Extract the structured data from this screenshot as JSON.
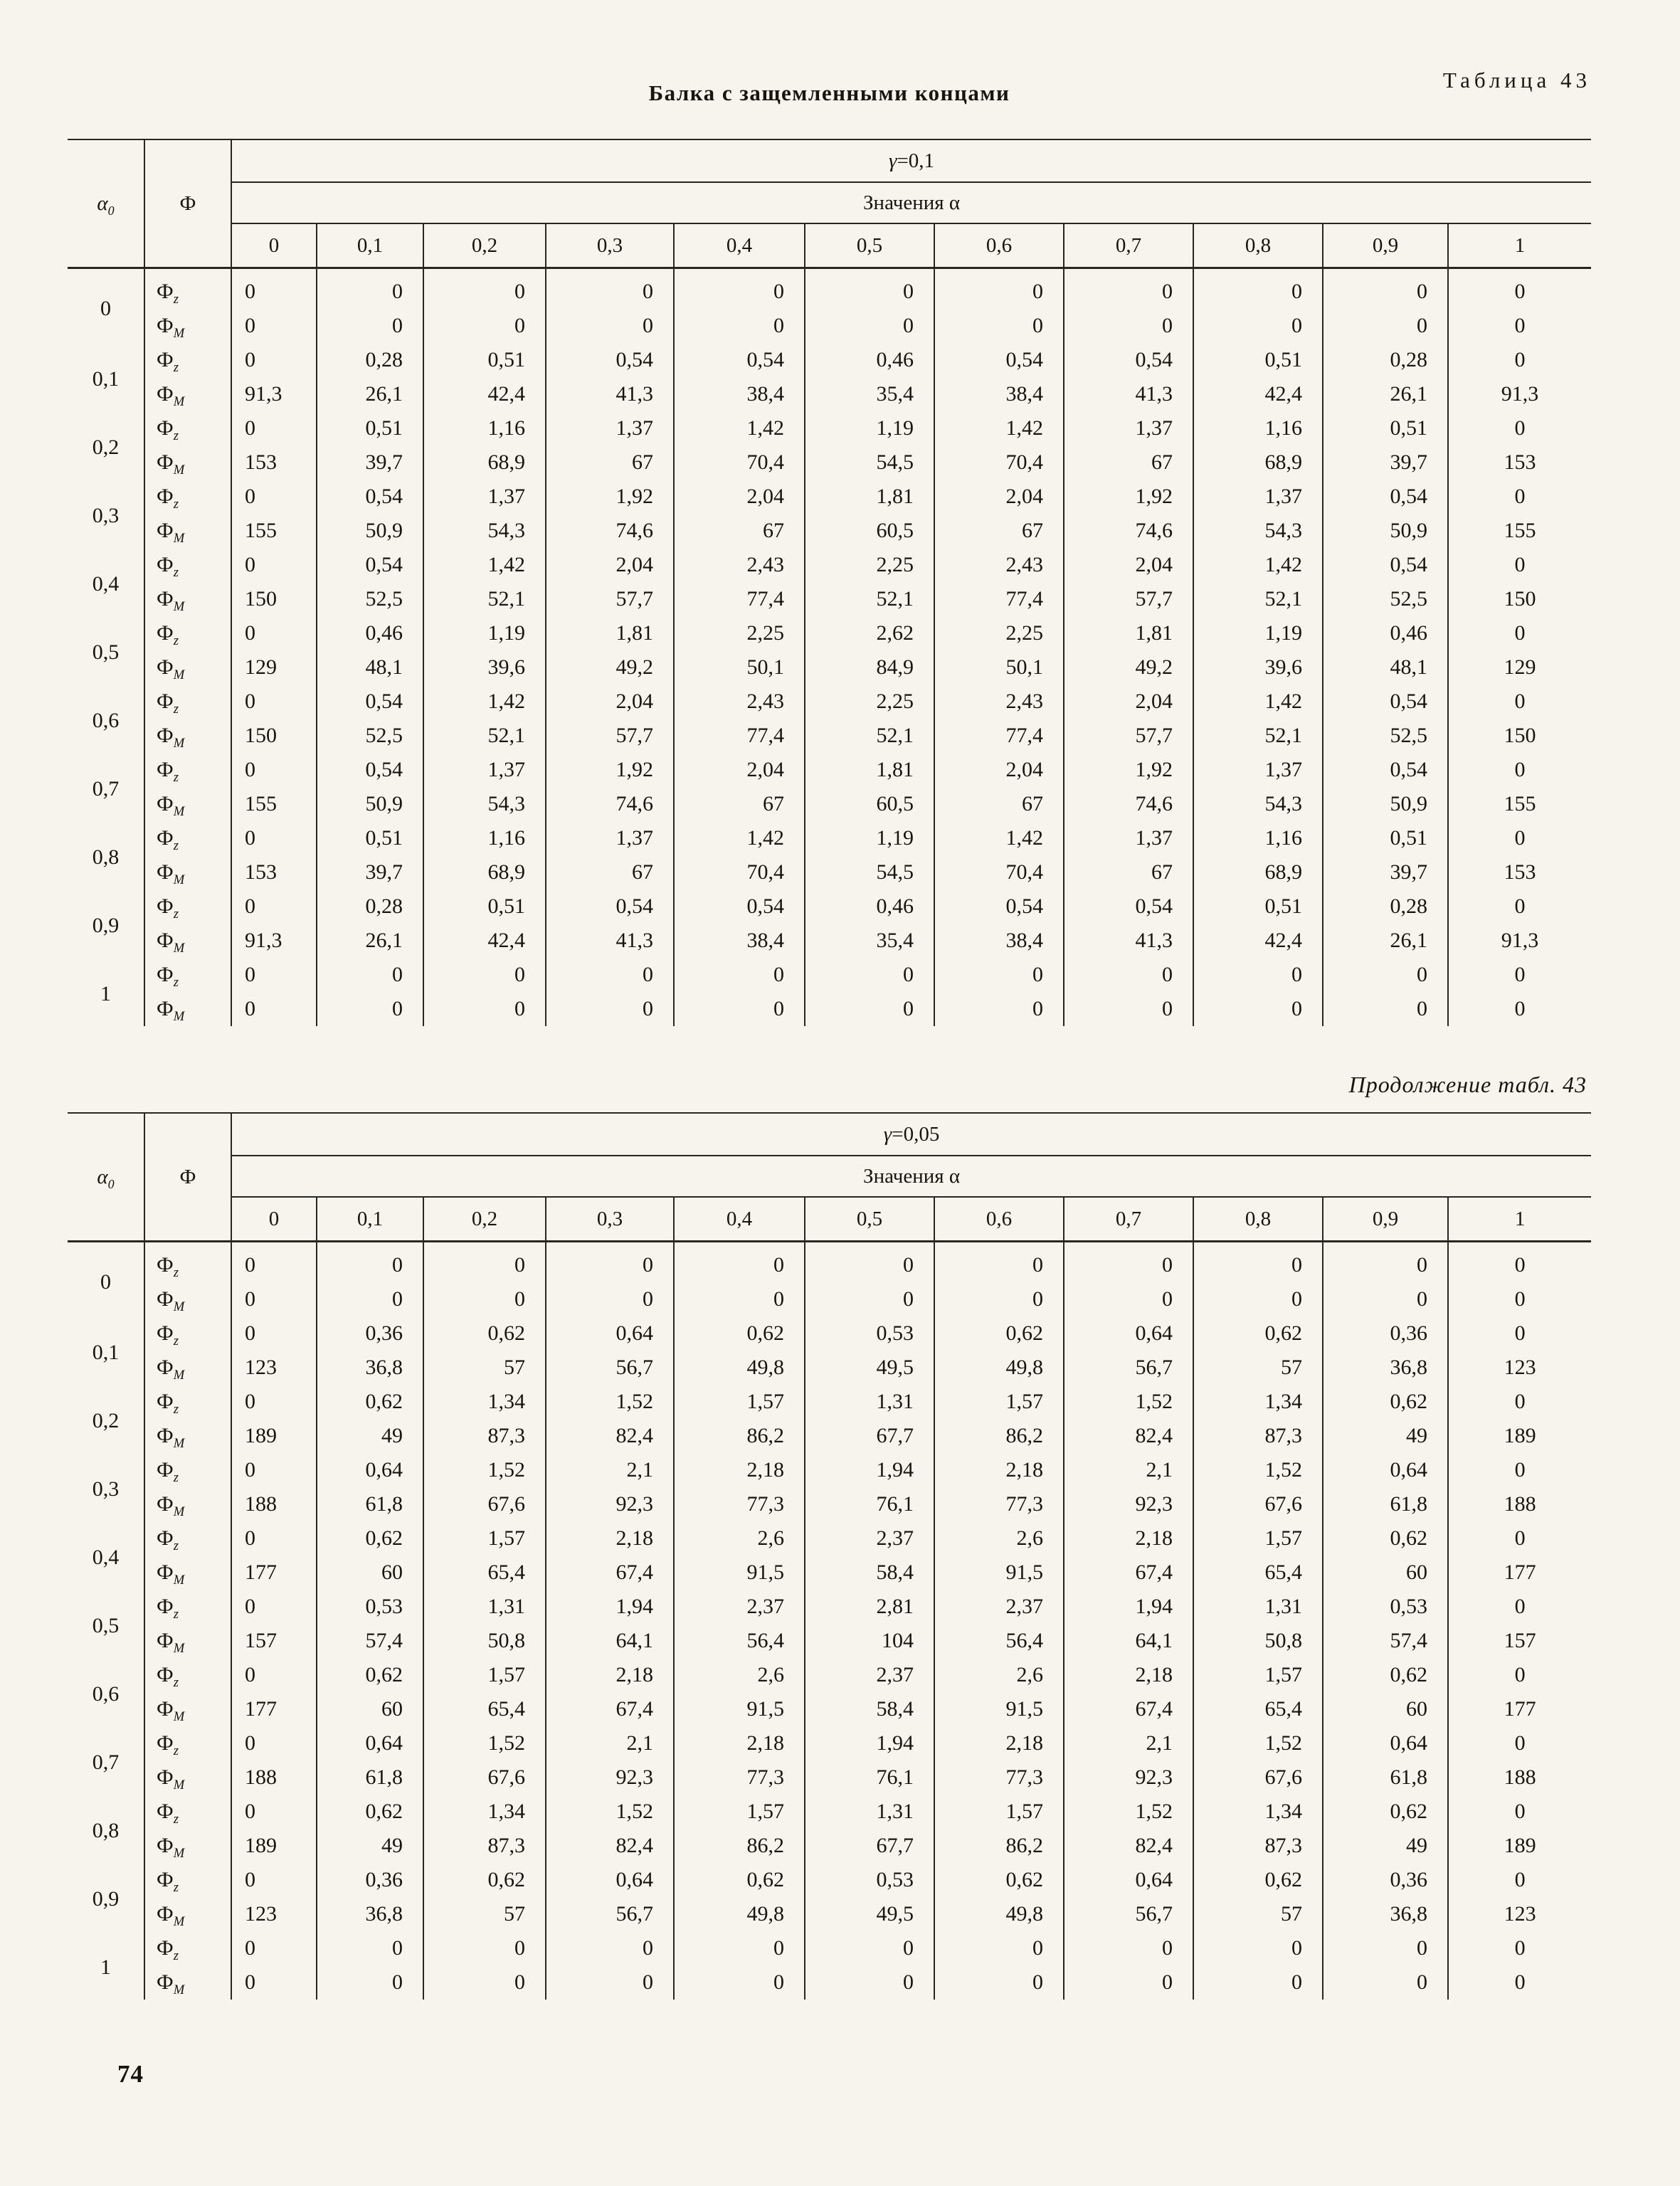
{
  "page": {
    "number": "74"
  },
  "table1": {
    "caption": "Таблица 43",
    "title": "Балка с защемленными концами",
    "gamma": {
      "sym": "γ",
      "rest": "=0,1"
    },
    "values_label": "Значения α",
    "alpha_header": {
      "base": "α",
      "sub": "0"
    },
    "phi_header": "Ф",
    "row_labels": {
      "base": "Ф",
      "z": "z",
      "m": "M"
    },
    "col_headers": [
      "0",
      "0,1",
      "0,2",
      "0,3",
      "0,4",
      "0,5",
      "0,6",
      "0,7",
      "0,8",
      "0,9",
      "1"
    ],
    "rows": [
      {
        "a0": "0",
        "z": [
          "0",
          "0",
          "0",
          "0",
          "0",
          "0",
          "0",
          "0",
          "0",
          "0",
          "0"
        ],
        "m": [
          "0",
          "0",
          "0",
          "0",
          "0",
          "0",
          "0",
          "0",
          "0",
          "0",
          "0"
        ]
      },
      {
        "a0": "0,1",
        "z": [
          "0",
          "0,28",
          "0,51",
          "0,54",
          "0,54",
          "0,46",
          "0,54",
          "0,54",
          "0,51",
          "0,28",
          "0"
        ],
        "m": [
          "91,3",
          "26,1",
          "42,4",
          "41,3",
          "38,4",
          "35,4",
          "38,4",
          "41,3",
          "42,4",
          "26,1",
          "91,3"
        ]
      },
      {
        "a0": "0,2",
        "z": [
          "0",
          "0,51",
          "1,16",
          "1,37",
          "1,42",
          "1,19",
          "1,42",
          "1,37",
          "1,16",
          "0,51",
          "0"
        ],
        "m": [
          "153",
          "39,7",
          "68,9",
          "67",
          "70,4",
          "54,5",
          "70,4",
          "67",
          "68,9",
          "39,7",
          "153"
        ]
      },
      {
        "a0": "0,3",
        "z": [
          "0",
          "0,54",
          "1,37",
          "1,92",
          "2,04",
          "1,81",
          "2,04",
          "1,92",
          "1,37",
          "0,54",
          "0"
        ],
        "m": [
          "155",
          "50,9",
          "54,3",
          "74,6",
          "67",
          "60,5",
          "67",
          "74,6",
          "54,3",
          "50,9",
          "155"
        ]
      },
      {
        "a0": "0,4",
        "z": [
          "0",
          "0,54",
          "1,42",
          "2,04",
          "2,43",
          "2,25",
          "2,43",
          "2,04",
          "1,42",
          "0,54",
          "0"
        ],
        "m": [
          "150",
          "52,5",
          "52,1",
          "57,7",
          "77,4",
          "52,1",
          "77,4",
          "57,7",
          "52,1",
          "52,5",
          "150"
        ]
      },
      {
        "a0": "0,5",
        "z": [
          "0",
          "0,46",
          "1,19",
          "1,81",
          "2,25",
          "2,62",
          "2,25",
          "1,81",
          "1,19",
          "0,46",
          "0"
        ],
        "m": [
          "129",
          "48,1",
          "39,6",
          "49,2",
          "50,1",
          "84,9",
          "50,1",
          "49,2",
          "39,6",
          "48,1",
          "129"
        ]
      },
      {
        "a0": "0,6",
        "z": [
          "0",
          "0,54",
          "1,42",
          "2,04",
          "2,43",
          "2,25",
          "2,43",
          "2,04",
          "1,42",
          "0,54",
          "0"
        ],
        "m": [
          "150",
          "52,5",
          "52,1",
          "57,7",
          "77,4",
          "52,1",
          "77,4",
          "57,7",
          "52,1",
          "52,5",
          "150"
        ]
      },
      {
        "a0": "0,7",
        "z": [
          "0",
          "0,54",
          "1,37",
          "1,92",
          "2,04",
          "1,81",
          "2,04",
          "1,92",
          "1,37",
          "0,54",
          "0"
        ],
        "m": [
          "155",
          "50,9",
          "54,3",
          "74,6",
          "67",
          "60,5",
          "67",
          "74,6",
          "54,3",
          "50,9",
          "155"
        ]
      },
      {
        "a0": "0,8",
        "z": [
          "0",
          "0,51",
          "1,16",
          "1,37",
          "1,42",
          "1,19",
          "1,42",
          "1,37",
          "1,16",
          "0,51",
          "0"
        ],
        "m": [
          "153",
          "39,7",
          "68,9",
          "67",
          "70,4",
          "54,5",
          "70,4",
          "67",
          "68,9",
          "39,7",
          "153"
        ]
      },
      {
        "a0": "0,9",
        "z": [
          "0",
          "0,28",
          "0,51",
          "0,54",
          "0,54",
          "0,46",
          "0,54",
          "0,54",
          "0,51",
          "0,28",
          "0"
        ],
        "m": [
          "91,3",
          "26,1",
          "42,4",
          "41,3",
          "38,4",
          "35,4",
          "38,4",
          "41,3",
          "42,4",
          "26,1",
          "91,3"
        ]
      },
      {
        "a0": "1",
        "z": [
          "0",
          "0",
          "0",
          "0",
          "0",
          "0",
          "0",
          "0",
          "0",
          "0",
          "0"
        ],
        "m": [
          "0",
          "0",
          "0",
          "0",
          "0",
          "0",
          "0",
          "0",
          "0",
          "0",
          "0"
        ]
      }
    ]
  },
  "table2": {
    "caption": "Продолжение табл. 43",
    "gamma": {
      "sym": "γ",
      "rest": "=0,05"
    },
    "values_label": "Значения α",
    "alpha_header": {
      "base": "α",
      "sub": "0"
    },
    "phi_header": "Ф",
    "row_labels": {
      "base": "Ф",
      "z": "z",
      "m": "M"
    },
    "col_headers": [
      "0",
      "0,1",
      "0,2",
      "0,3",
      "0,4",
      "0,5",
      "0,6",
      "0,7",
      "0,8",
      "0,9",
      "1"
    ],
    "rows": [
      {
        "a0": "0",
        "z": [
          "0",
          "0",
          "0",
          "0",
          "0",
          "0",
          "0",
          "0",
          "0",
          "0",
          "0"
        ],
        "m": [
          "0",
          "0",
          "0",
          "0",
          "0",
          "0",
          "0",
          "0",
          "0",
          "0",
          "0"
        ]
      },
      {
        "a0": "0,1",
        "z": [
          "0",
          "0,36",
          "0,62",
          "0,64",
          "0,62",
          "0,53",
          "0,62",
          "0,64",
          "0,62",
          "0,36",
          "0"
        ],
        "m": [
          "123",
          "36,8",
          "57",
          "56,7",
          "49,8",
          "49,5",
          "49,8",
          "56,7",
          "57",
          "36,8",
          "123"
        ]
      },
      {
        "a0": "0,2",
        "z": [
          "0",
          "0,62",
          "1,34",
          "1,52",
          "1,57",
          "1,31",
          "1,57",
          "1,52",
          "1,34",
          "0,62",
          "0"
        ],
        "m": [
          "189",
          "49",
          "87,3",
          "82,4",
          "86,2",
          "67,7",
          "86,2",
          "82,4",
          "87,3",
          "49",
          "189"
        ]
      },
      {
        "a0": "0,3",
        "z": [
          "0",
          "0,64",
          "1,52",
          "2,1",
          "2,18",
          "1,94",
          "2,18",
          "2,1",
          "1,52",
          "0,64",
          "0"
        ],
        "m": [
          "188",
          "61,8",
          "67,6",
          "92,3",
          "77,3",
          "76,1",
          "77,3",
          "92,3",
          "67,6",
          "61,8",
          "188"
        ]
      },
      {
        "a0": "0,4",
        "z": [
          "0",
          "0,62",
          "1,57",
          "2,18",
          "2,6",
          "2,37",
          "2,6",
          "2,18",
          "1,57",
          "0,62",
          "0"
        ],
        "m": [
          "177",
          "60",
          "65,4",
          "67,4",
          "91,5",
          "58,4",
          "91,5",
          "67,4",
          "65,4",
          "60",
          "177"
        ]
      },
      {
        "a0": "0,5",
        "z": [
          "0",
          "0,53",
          "1,31",
          "1,94",
          "2,37",
          "2,81",
          "2,37",
          "1,94",
          "1,31",
          "0,53",
          "0"
        ],
        "m": [
          "157",
          "57,4",
          "50,8",
          "64,1",
          "56,4",
          "104",
          "56,4",
          "64,1",
          "50,8",
          "57,4",
          "157"
        ]
      },
      {
        "a0": "0,6",
        "z": [
          "0",
          "0,62",
          "1,57",
          "2,18",
          "2,6",
          "2,37",
          "2,6",
          "2,18",
          "1,57",
          "0,62",
          "0"
        ],
        "m": [
          "177",
          "60",
          "65,4",
          "67,4",
          "91,5",
          "58,4",
          "91,5",
          "67,4",
          "65,4",
          "60",
          "177"
        ]
      },
      {
        "a0": "0,7",
        "z": [
          "0",
          "0,64",
          "1,52",
          "2,1",
          "2,18",
          "1,94",
          "2,18",
          "2,1",
          "1,52",
          "0,64",
          "0"
        ],
        "m": [
          "188",
          "61,8",
          "67,6",
          "92,3",
          "77,3",
          "76,1",
          "77,3",
          "92,3",
          "67,6",
          "61,8",
          "188"
        ]
      },
      {
        "a0": "0,8",
        "z": [
          "0",
          "0,62",
          "1,34",
          "1,52",
          "1,57",
          "1,31",
          "1,57",
          "1,52",
          "1,34",
          "0,62",
          "0"
        ],
        "m": [
          "189",
          "49",
          "87,3",
          "82,4",
          "86,2",
          "67,7",
          "86,2",
          "82,4",
          "87,3",
          "49",
          "189"
        ]
      },
      {
        "a0": "0,9",
        "z": [
          "0",
          "0,36",
          "0,62",
          "0,64",
          "0,62",
          "0,53",
          "0,62",
          "0,64",
          "0,62",
          "0,36",
          "0"
        ],
        "m": [
          "123",
          "36,8",
          "57",
          "56,7",
          "49,8",
          "49,5",
          "49,8",
          "56,7",
          "57",
          "36,8",
          "123"
        ]
      },
      {
        "a0": "1",
        "z": [
          "0",
          "0",
          "0",
          "0",
          "0",
          "0",
          "0",
          "0",
          "0",
          "0",
          "0"
        ],
        "m": [
          "0",
          "0",
          "0",
          "0",
          "0",
          "0",
          "0",
          "0",
          "0",
          "0",
          "0"
        ]
      }
    ]
  }
}
